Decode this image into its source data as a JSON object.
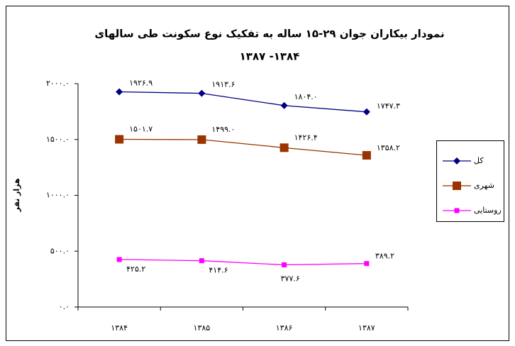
{
  "chart_data": {
    "type": "line",
    "title_lines": [
      "نمودار بیکاران جوان ۲۹-۱۵ ساله به تفکیک نوع سکونت طی سالهای",
      "۱۳۸۷ -۱۳۸۴"
    ],
    "ylabel": "هزار نفر",
    "categories": [
      "۱۳۸۴",
      "۱۳۸۵",
      "۱۳۸۶",
      "۱۳۸۷"
    ],
    "series": [
      {
        "name": "کل",
        "color": "#000080",
        "marker": "diamond",
        "values": [
          1926.9,
          1913.6,
          1804.0,
          1747.3
        ],
        "value_labels": [
          "۱۹۲۶.۹",
          "۱۹۱۳.۶",
          "۱۸۰۴.۰",
          "۱۷۴۷.۳"
        ]
      },
      {
        "name": "شهری",
        "color": "#993300",
        "marker": "square",
        "values": [
          1501.7,
          1499.0,
          1426.4,
          1358.2
        ],
        "value_labels": [
          "۱۵۰۱.۷",
          "۱۴۹۹.۰",
          "۱۴۲۶.۴",
          "۱۳۵۸.۲"
        ]
      },
      {
        "name": "روستایی",
        "color": "#FF00FF",
        "marker": "square",
        "values": [
          425.2,
          414.6,
          377.6,
          389.2
        ],
        "value_labels": [
          "۴۲۵.۲",
          "۴۱۴.۶",
          "۳۷۷.۶",
          "۳۸۹.۲"
        ]
      }
    ],
    "ylim": [
      0,
      2000
    ],
    "yticks": [
      {
        "value": 0,
        "label": "۰.۰"
      },
      {
        "value": 500,
        "label": "۵۰۰.۰"
      },
      {
        "value": 1000,
        "label": "۱۰۰۰.۰"
      },
      {
        "value": 1500,
        "label": "۱۵۰۰.۰"
      },
      {
        "value": 2000,
        "label": "۲۰۰۰.۰"
      }
    ],
    "grid": false,
    "legend": "right"
  }
}
